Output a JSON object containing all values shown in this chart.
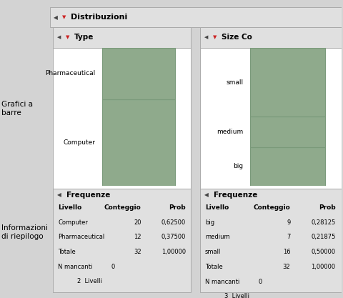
{
  "bar_color": "#8faa8c",
  "bar_edge_color": "#7a9a7a",
  "type_categories": [
    "Pharmaceutical",
    "Computer"
  ],
  "type_counts": [
    12,
    20
  ],
  "size_categories": [
    "small",
    "medium",
    "big"
  ],
  "size_counts": [
    16,
    7,
    9
  ],
  "total": 32,
  "title_main": "Distribuzioni",
  "title_type": "Type",
  "title_size": "Size Co",
  "freq_header": "Frequenze",
  "col1": "Livello",
  "col2": "Conteggio",
  "col3": "Prob",
  "left_label1": "Grafici a\nbarre",
  "left_label2": "Informazioni\ndi riepilogo",
  "outer_bg": "#d3d3d3",
  "panel_bg": "#f0f0f0",
  "white": "#ffffff",
  "header_bg": "#e0e0e0",
  "type_rows": [
    [
      "Computer",
      "20",
      "0,62500"
    ],
    [
      "Pharmaceutical",
      "12",
      "0,37500"
    ],
    [
      "Totale",
      "32",
      "1,00000"
    ]
  ],
  "size_rows": [
    [
      "big",
      "9",
      "0,28125"
    ],
    [
      "medium",
      "7",
      "0,21875"
    ],
    [
      "small",
      "16",
      "0,50000"
    ],
    [
      "Totale",
      "32",
      "1,00000"
    ]
  ]
}
